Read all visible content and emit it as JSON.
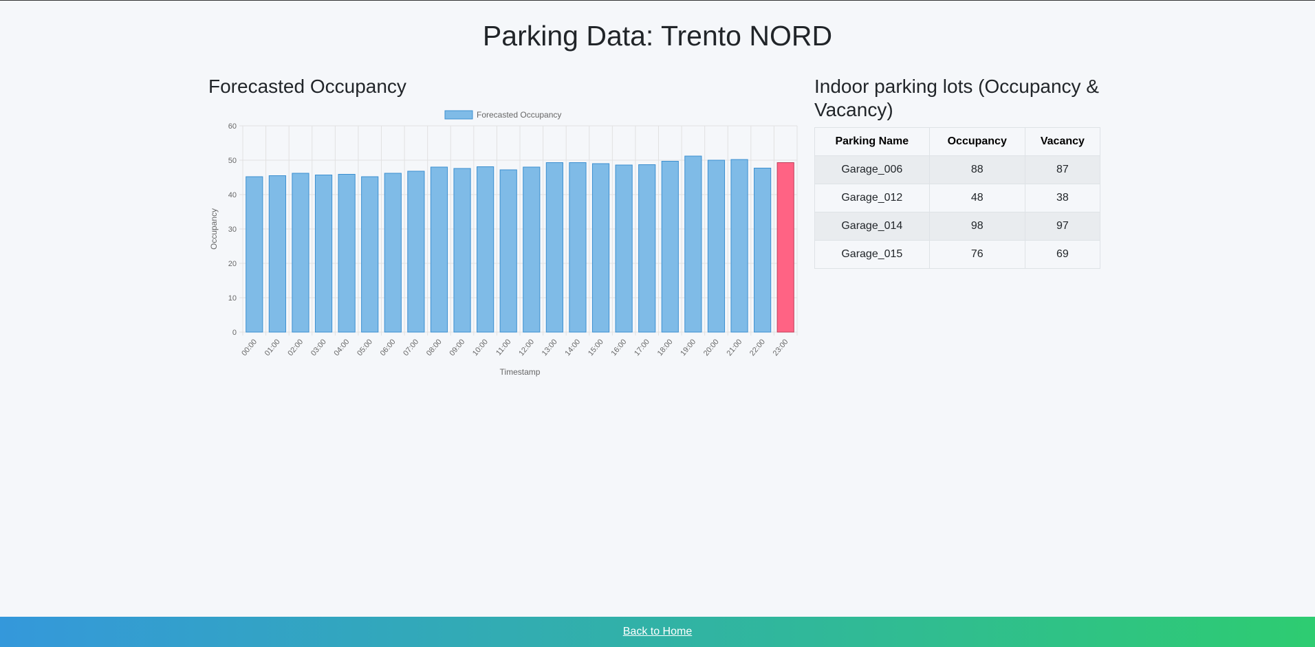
{
  "page": {
    "title": "Parking Data: Trento NORD"
  },
  "chart_section": {
    "heading": "Forecasted Occupancy"
  },
  "chart_data": {
    "type": "bar",
    "legend": [
      "Forecasted Occupancy"
    ],
    "legend_position": "top",
    "xlabel": "Timestamp",
    "ylabel": "Occupancy",
    "ylim": [
      0,
      60
    ],
    "yticks": [
      0,
      10,
      20,
      30,
      40,
      50,
      60
    ],
    "grid": true,
    "categories": [
      "00:00",
      "01:00",
      "02:00",
      "03:00",
      "04:00",
      "05:00",
      "06:00",
      "07:00",
      "08:00",
      "09:00",
      "10:00",
      "11:00",
      "12:00",
      "13:00",
      "14:00",
      "15:00",
      "16:00",
      "17:00",
      "18:00",
      "19:00",
      "20:00",
      "21:00",
      "22:00",
      "23:00"
    ],
    "series": [
      {
        "name": "Forecasted Occupancy",
        "values": [
          45.2,
          45.5,
          46.2,
          45.7,
          45.9,
          45.2,
          46.2,
          46.8,
          48.0,
          47.6,
          48.1,
          47.2,
          48.0,
          49.3,
          49.3,
          49.0,
          48.6,
          48.7,
          49.7,
          51.2,
          50.0,
          50.2,
          47.7,
          49.3
        ],
        "color": "#7fbbe7",
        "border_color": "#3b8fd0",
        "highlight_index": 23,
        "highlight_color": "#ff6384"
      }
    ]
  },
  "table_section": {
    "heading": "Indoor parking lots (Occupancy & Vacancy)",
    "headers": {
      "name": "Parking Name",
      "occupancy": "Occupancy",
      "vacancy": "Vacancy"
    },
    "rows": [
      {
        "name": "Garage_006",
        "occupancy": "88",
        "vacancy": "87"
      },
      {
        "name": "Garage_012",
        "occupancy": "48",
        "vacancy": "38"
      },
      {
        "name": "Garage_014",
        "occupancy": "98",
        "vacancy": "97"
      },
      {
        "name": "Garage_015",
        "occupancy": "76",
        "vacancy": "69"
      }
    ]
  },
  "footer": {
    "link": "Back to Home",
    "gradient_start": "#3498db",
    "gradient_end": "#2ecc71"
  }
}
